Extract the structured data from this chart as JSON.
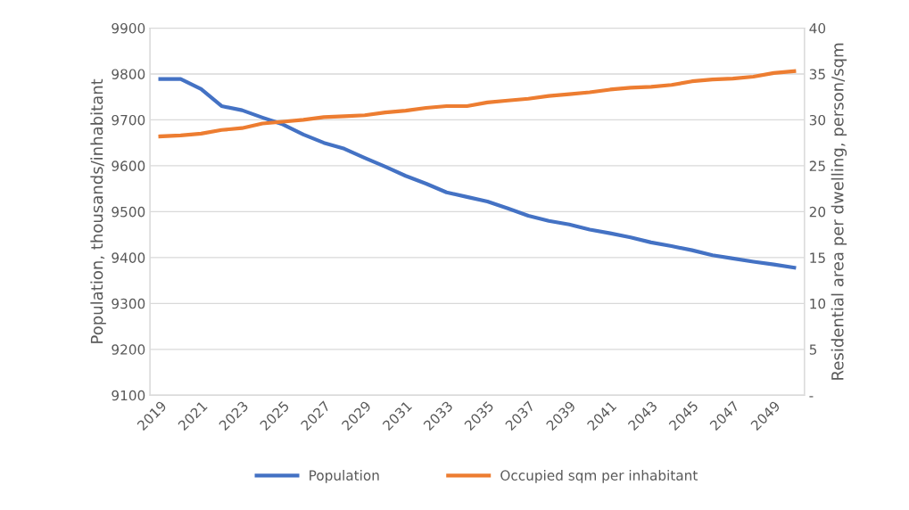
{
  "chart_data": {
    "type": "line",
    "xlabel": null,
    "ylabel": "Population, thousands/inhabitant",
    "y2label": "Residential area per dwelling, person/sqm",
    "categories": [
      "2019",
      null,
      "2021",
      null,
      "2023",
      null,
      "2025",
      null,
      "2027",
      null,
      "2029",
      null,
      "2031",
      null,
      "2033",
      null,
      "2035",
      null,
      "2037",
      null,
      "2039",
      null,
      "2041",
      null,
      "2043",
      null,
      "2045",
      null,
      "2047",
      null,
      "2049",
      null
    ],
    "series": [
      {
        "name": "Population",
        "color": "#4472c4",
        "values": [
          9789,
          9789,
          9767,
          9730,
          9721,
          9705,
          9690,
          9668,
          9650,
          9637,
          9617,
          9598,
          9578,
          9561,
          9542,
          9532,
          9522,
          9507,
          9491,
          9480,
          9472,
          9461,
          9453,
          9444,
          9433,
          9425,
          9416,
          9405,
          9398,
          9391,
          9385,
          9378
        ]
      },
      {
        "name": "Occupied sqm per inhabitant",
        "color": "#ed7d31",
        "axis": "y2",
        "values": [
          28.2,
          28.3,
          28.5,
          28.9,
          29.1,
          29.6,
          29.8,
          30.0,
          30.3,
          30.4,
          30.5,
          30.8,
          31.0,
          31.3,
          31.5,
          31.5,
          31.9,
          32.1,
          32.3,
          32.6,
          32.8,
          33.0,
          33.3,
          33.5,
          33.6,
          33.8,
          34.2,
          34.4,
          34.5,
          34.7,
          35.1,
          35.3
        ]
      }
    ],
    "ylim": [
      9100,
      9900
    ],
    "yticks": [
      9100,
      9200,
      9300,
      9400,
      9500,
      9600,
      9700,
      9800,
      9900
    ],
    "y2lim": [
      0,
      40
    ],
    "y2ticks": [
      {
        "value": 0,
        "label": "-"
      },
      5,
      10,
      15,
      20,
      25,
      30,
      35,
      40
    ],
    "grid": "y",
    "legend": "bottom",
    "marker": "none",
    "line_style": "solid"
  }
}
